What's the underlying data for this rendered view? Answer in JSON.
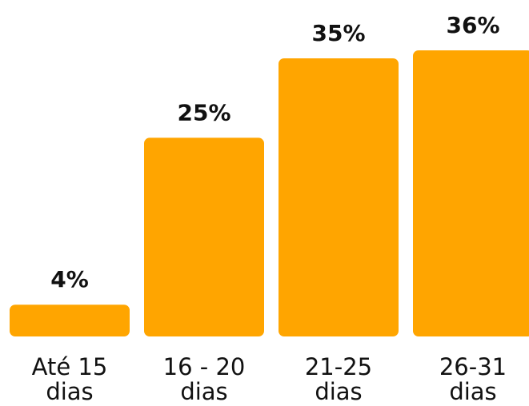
{
  "chart_data": {
    "type": "bar",
    "categories": [
      {
        "line1": "Até 15",
        "line2": "dias"
      },
      {
        "line1": "16 - 20",
        "line2": "dias"
      },
      {
        "line1": "21-25",
        "line2": "dias"
      },
      {
        "line1": "26-31",
        "line2": "dias"
      }
    ],
    "values": [
      4,
      25,
      35,
      36
    ],
    "value_labels": [
      "4%",
      "25%",
      "35%",
      "36%"
    ],
    "unit": "%",
    "ylim": [
      0,
      36
    ],
    "bar_color": "#FFA500",
    "grid": false,
    "legend": "none"
  }
}
